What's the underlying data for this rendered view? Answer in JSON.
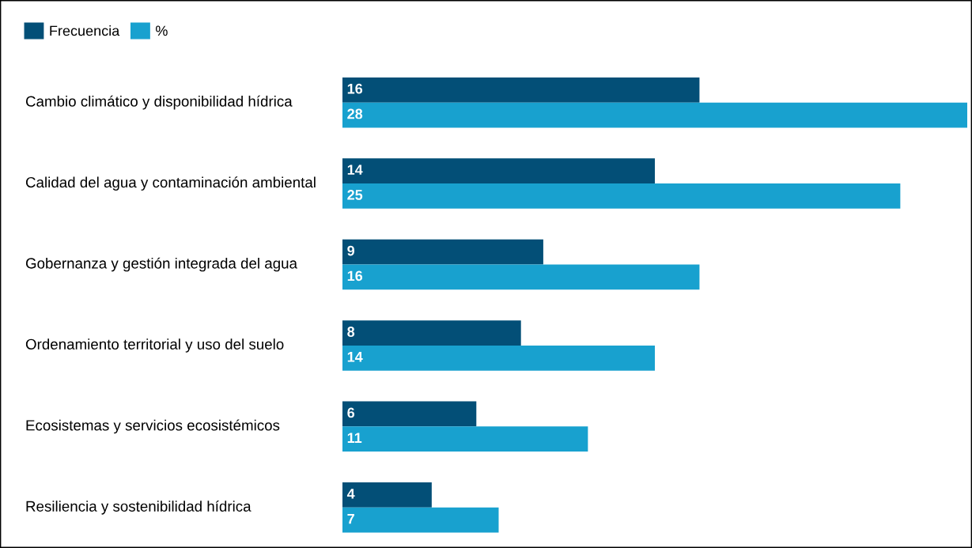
{
  "chart_data": {
    "type": "bar",
    "orientation": "horizontal",
    "legend": "top left",
    "data_labels": true,
    "categories": [
      "Cambio climático y disponibilidad hídrica",
      "Calidad del agua y contaminación ambiental",
      "Gobernanza y gestión integrada del agua",
      "Ordenamiento territorial y uso del suelo",
      "Ecosistemas y servicios ecosistémicos",
      "Resiliencia y sostenibilidad hídrica"
    ],
    "series": [
      {
        "name": "Frecuencia",
        "color": "#034f77",
        "values": [
          16,
          14,
          9,
          8,
          6,
          4
        ]
      },
      {
        "name": "%",
        "color": "#18a1cf",
        "values": [
          28,
          25,
          16,
          14,
          11,
          7
        ]
      }
    ]
  }
}
